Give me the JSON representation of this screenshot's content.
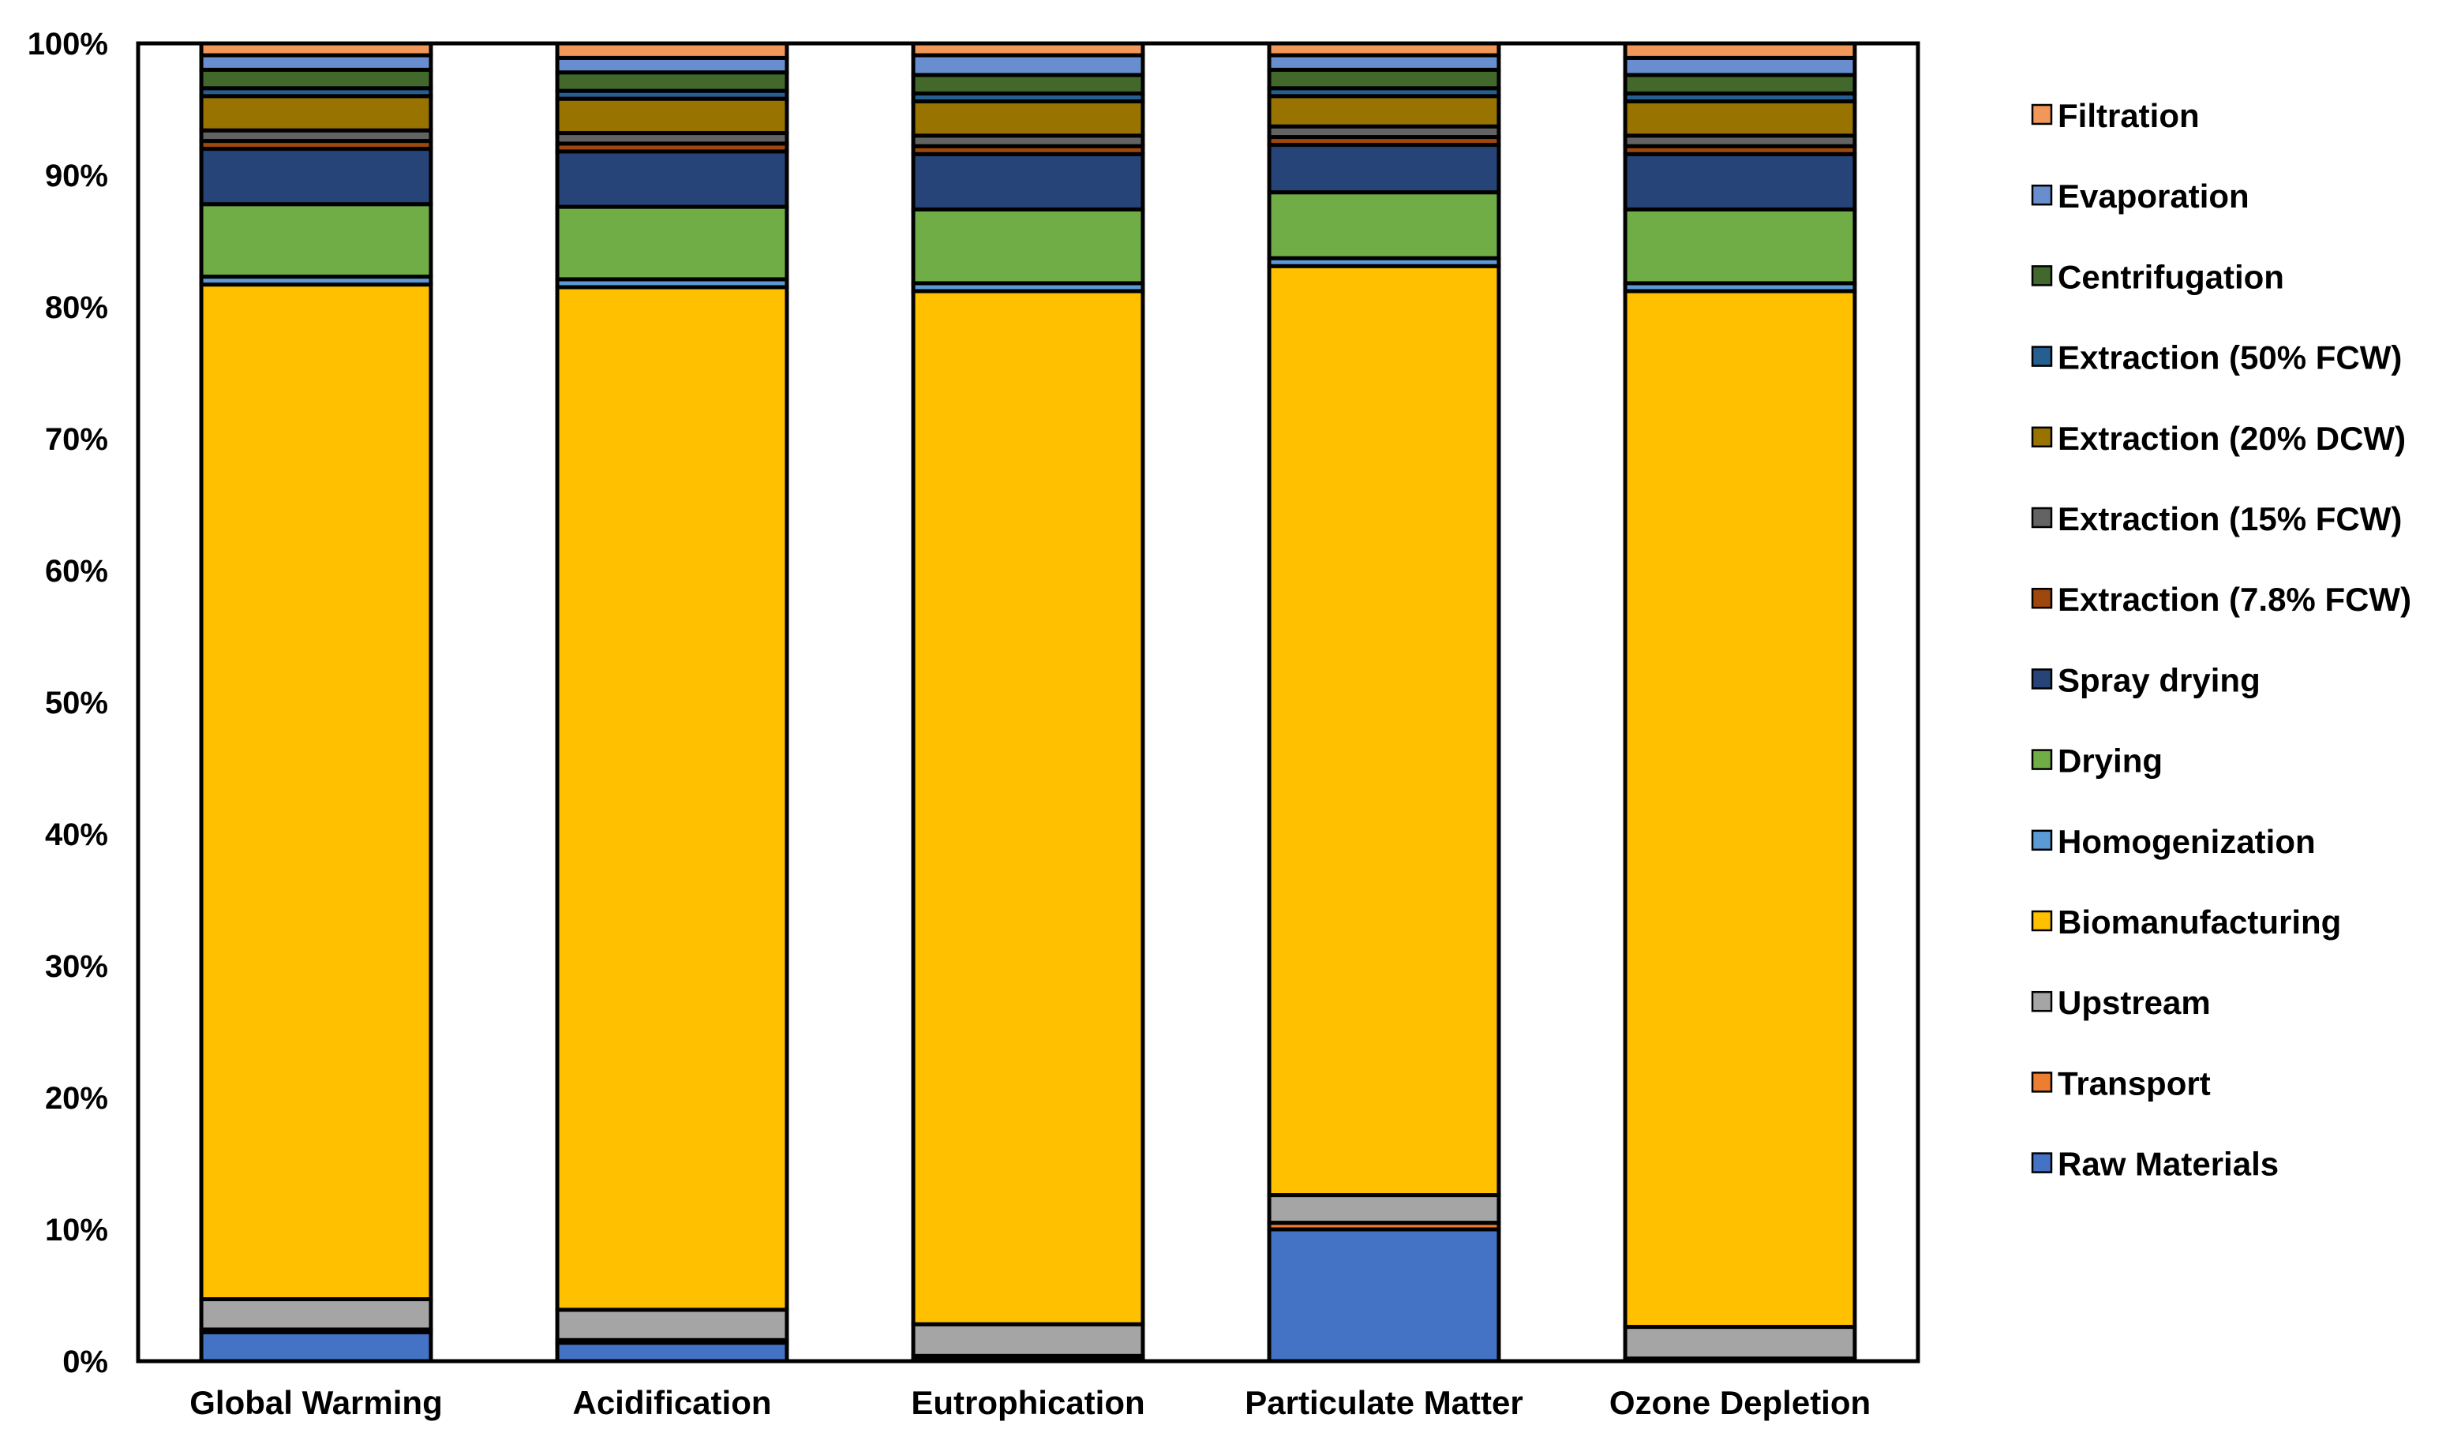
{
  "chart_data": {
    "type": "bar",
    "stacked": true,
    "percent": true,
    "title": "",
    "xlabel": "",
    "ylabel": "",
    "ylim": [
      0,
      100
    ],
    "y_ticks": [
      "0%",
      "10%",
      "20%",
      "30%",
      "40%",
      "50%",
      "60%",
      "70%",
      "80%",
      "90%",
      "100%"
    ],
    "grid": false,
    "legend_position": "right",
    "categories": [
      "Global Warming",
      "Acidification",
      "Eutrophication",
      "Particulate Matter",
      "Ozone Depletion"
    ],
    "series": [
      {
        "name": "Raw Materials",
        "color": "#4472C4",
        "values": [
          2.2,
          1.4,
          0.3,
          10.0,
          0.1
        ]
      },
      {
        "name": "Transport",
        "color": "#ED7D31",
        "values": [
          0.2,
          0.2,
          0.1,
          0.5,
          0.1
        ]
      },
      {
        "name": "Upstream",
        "color": "#A5A5A5",
        "values": [
          2.3,
          2.3,
          2.4,
          2.1,
          2.4
        ]
      },
      {
        "name": "Biomanufacturing",
        "color": "#FFC000",
        "values": [
          77.0,
          77.6,
          78.4,
          70.5,
          78.6
        ]
      },
      {
        "name": "Homogenization",
        "color": "#5B9BD5",
        "values": [
          0.6,
          0.6,
          0.6,
          0.6,
          0.6
        ]
      },
      {
        "name": "Drying",
        "color": "#70AD47",
        "values": [
          5.5,
          5.5,
          5.6,
          5.0,
          5.6
        ]
      },
      {
        "name": "Spray drying",
        "color": "#264478",
        "values": [
          4.2,
          4.2,
          4.2,
          3.6,
          4.2
        ]
      },
      {
        "name": "Extraction (7.8% FCW)",
        "color": "#9E480E",
        "values": [
          0.6,
          0.6,
          0.6,
          0.6,
          0.6
        ]
      },
      {
        "name": "Extraction (15% FCW)",
        "color": "#636363",
        "values": [
          0.8,
          0.8,
          0.8,
          0.8,
          0.8
        ]
      },
      {
        "name": "Extraction (20% DCW)",
        "color": "#997300",
        "values": [
          2.6,
          2.6,
          2.6,
          2.3,
          2.6
        ]
      },
      {
        "name": "Extraction (50% FCW)",
        "color": "#255E91",
        "values": [
          0.6,
          0.6,
          0.6,
          0.6,
          0.6
        ]
      },
      {
        "name": "Centrifugation",
        "color": "#43682B",
        "values": [
          1.4,
          1.4,
          1.4,
          1.4,
          1.4
        ]
      },
      {
        "name": "Evaporation",
        "color": "#698ED0",
        "values": [
          1.1,
          1.1,
          1.5,
          1.1,
          1.3
        ]
      },
      {
        "name": "Filtration",
        "color": "#F1975A",
        "values": [
          0.9,
          1.1,
          0.9,
          0.9,
          1.1
        ]
      }
    ],
    "legend_order": [
      "Filtration",
      "Evaporation",
      "Centrifugation",
      "Extraction (50% FCW)",
      "Extraction (20% DCW)",
      "Extraction (15% FCW)",
      "Extraction (7.8% FCW)",
      "Spray drying",
      "Drying",
      "Homogenization",
      "Biomanufacturing",
      "Upstream",
      "Transport",
      "Raw Materials"
    ]
  }
}
